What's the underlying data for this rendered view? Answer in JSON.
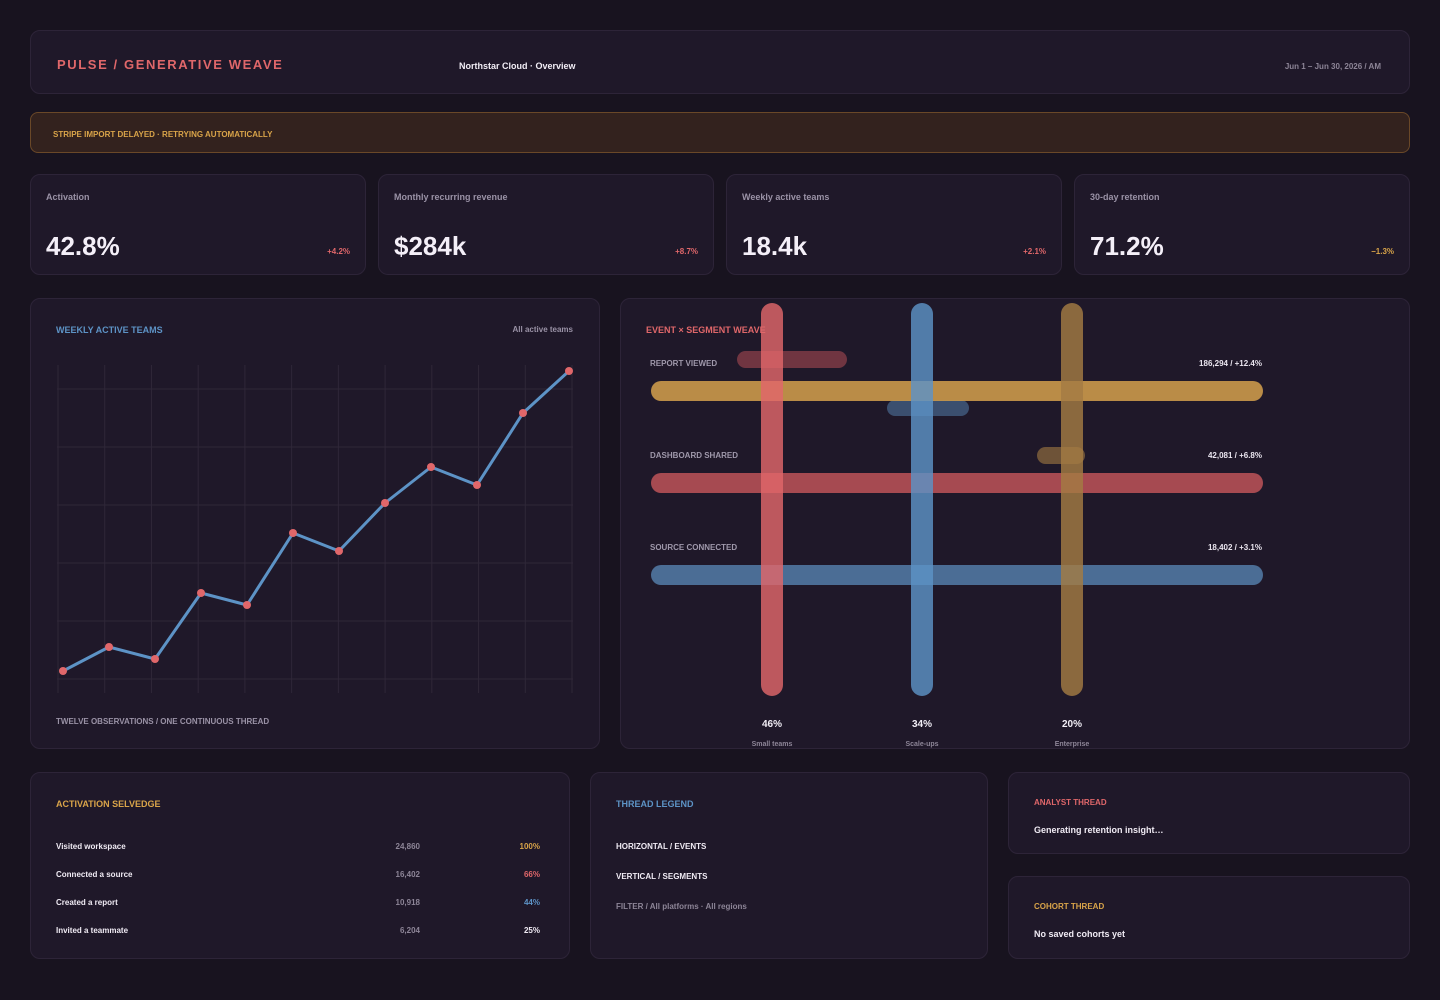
{
  "header": {
    "brand": "PULSE / GENERATIVE WEAVE",
    "breadcrumb": "Northstar Cloud · Overview",
    "date_range": "Jun 1 – Jun 30, 2026 / AM"
  },
  "alert": {
    "text": "STRIPE IMPORT DELAYED · RETRYING AUTOMATICALLY"
  },
  "kpis": [
    {
      "label": "Activation",
      "value": "42.8%",
      "delta": "+4.2%",
      "delta_color": "#e0676a"
    },
    {
      "label": "Monthly recurring revenue",
      "value": "$284k",
      "delta": "+8.7%",
      "delta_color": "#e0676a"
    },
    {
      "label": "Weekly active teams",
      "value": "18.4k",
      "delta": "+2.1%",
      "delta_color": "#e0676a"
    },
    {
      "label": "30-day retention",
      "value": "71.2%",
      "delta": "−1.3%",
      "delta_color": "#d9a449"
    }
  ],
  "wat_panel": {
    "title": "WEEKLY ACTIVE TEAMS",
    "filter": "All active teams",
    "footer": "TWELVE OBSERVATIONS / ONE CONTINUOUS THREAD"
  },
  "chart_data": {
    "type": "line",
    "title": "WEEKLY ACTIVE TEAMS",
    "x": [
      1,
      2,
      3,
      4,
      5,
      6,
      7,
      8,
      9,
      10,
      11,
      12
    ],
    "values": [
      0,
      4,
      2,
      13,
      11,
      23,
      20,
      28,
      34,
      31,
      43,
      50
    ],
    "ylim": [
      0,
      50
    ],
    "grid": true,
    "line_color": "#5d93c6",
    "point_color": "#e0676a"
  },
  "weave_panel": {
    "title": "EVENT × SEGMENT WEAVE",
    "events": [
      {
        "label": "REPORT VIEWED",
        "value": "186,294 / +12.4%",
        "color": "#c8974a"
      },
      {
        "label": "DASHBOARD SHARED",
        "value": "42,081 / +6.8%",
        "color": "#b24f55"
      },
      {
        "label": "SOURCE CONNECTED",
        "value": "18,402 / +3.1%",
        "color": "#4f759e"
      }
    ],
    "segments": [
      {
        "pct": "46%",
        "label": "Small teams",
        "color": "#e0676a"
      },
      {
        "pct": "34%",
        "label": "Scale-ups",
        "color": "#5d93c6"
      },
      {
        "pct": "20%",
        "label": "Enterprise",
        "color": "#a37b43"
      }
    ]
  },
  "activation": {
    "title": "ACTIVATION SELVEDGE",
    "rows": [
      {
        "label": "Visited workspace",
        "count": "24,860",
        "pct": "100%",
        "color": "#d9a449"
      },
      {
        "label": "Connected a source",
        "count": "16,402",
        "pct": "66%",
        "color": "#e0676a"
      },
      {
        "label": "Created a report",
        "count": "10,918",
        "pct": "44%",
        "color": "#5d93c6"
      },
      {
        "label": "Invited a teammate",
        "count": "6,204",
        "pct": "25%",
        "color": "#f0ebf4"
      }
    ]
  },
  "legend": {
    "title": "THREAD LEGEND",
    "horizontal": "HORIZONTAL / EVENTS",
    "vertical": "VERTICAL / SEGMENTS",
    "filter": "FILTER / All platforms · All regions"
  },
  "analyst": {
    "title": "ANALYST THREAD",
    "text": "Generating retention insight…"
  },
  "cohort": {
    "title": "COHORT THREAD",
    "text": "No saved cohorts yet"
  },
  "colors": {
    "coral": "#e0676a",
    "blue": "#5d93c6",
    "gold": "#d9a449",
    "bg": "#18131f"
  }
}
